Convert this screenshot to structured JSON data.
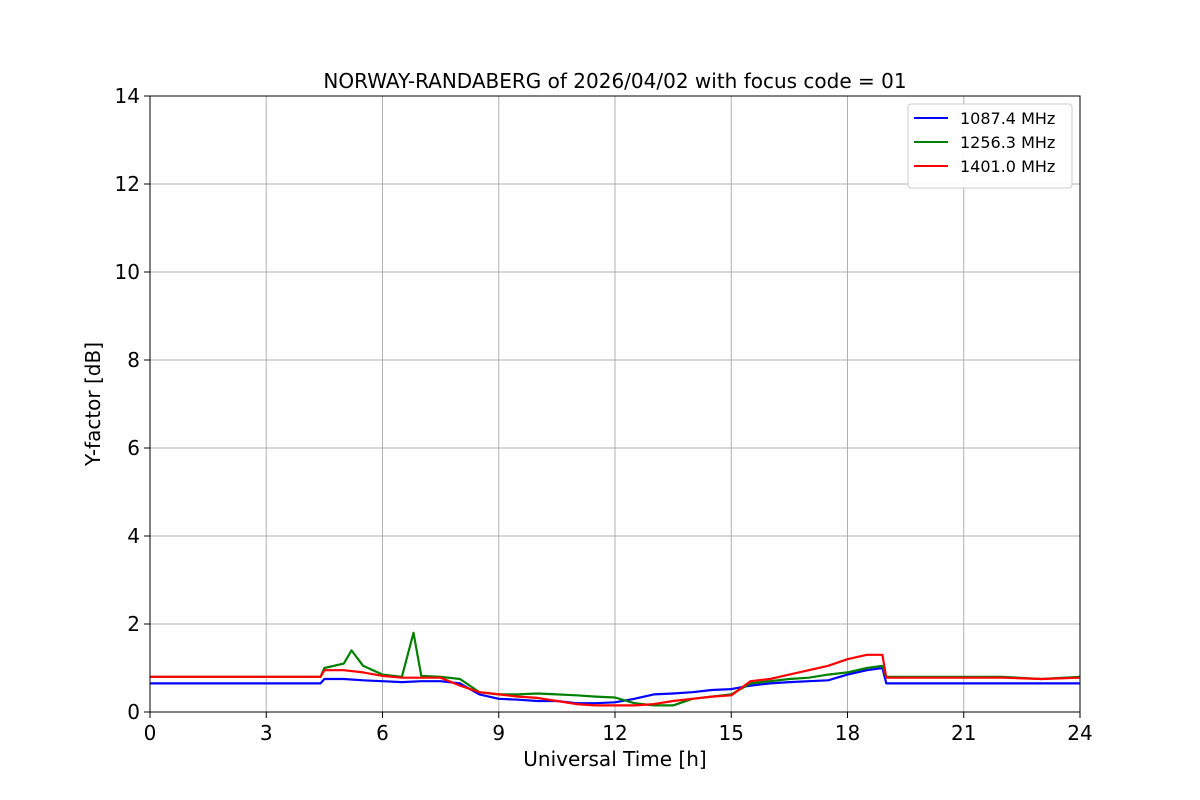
{
  "chart_data": {
    "type": "line",
    "title": "NORWAY-RANDABERG of 2026/04/02 with focus code = 01",
    "xlabel": "Universal Time [h]",
    "ylabel": "Y-factor [dB]",
    "xlim": [
      0,
      24
    ],
    "ylim": [
      0,
      14
    ],
    "xticks": [
      0,
      3,
      6,
      9,
      12,
      15,
      18,
      21,
      24
    ],
    "yticks": [
      0,
      2,
      4,
      6,
      8,
      10,
      12,
      14
    ],
    "grid": true,
    "legend_position": "top-right",
    "series": [
      {
        "name": "1087.4 MHz",
        "color": "#0000ff",
        "x": [
          0,
          1,
          2,
          3,
          4,
          4.4,
          4.5,
          5,
          5.5,
          6,
          6.5,
          7,
          7.5,
          8,
          8.5,
          9,
          9.5,
          10,
          10.5,
          11,
          11.5,
          12,
          12.5,
          13,
          13.5,
          14,
          14.5,
          15,
          15.5,
          16,
          16.5,
          17,
          17.5,
          18,
          18.5,
          18.9,
          19,
          20,
          21,
          22,
          23,
          24
        ],
        "y": [
          0.65,
          0.65,
          0.65,
          0.65,
          0.65,
          0.65,
          0.75,
          0.75,
          0.72,
          0.7,
          0.68,
          0.7,
          0.7,
          0.65,
          0.4,
          0.3,
          0.28,
          0.25,
          0.25,
          0.2,
          0.2,
          0.22,
          0.3,
          0.4,
          0.42,
          0.45,
          0.5,
          0.52,
          0.6,
          0.65,
          0.68,
          0.7,
          0.72,
          0.85,
          0.95,
          1.0,
          0.65,
          0.65,
          0.65,
          0.65,
          0.65,
          0.65
        ]
      },
      {
        "name": "1256.3 MHz",
        "color": "#008000",
        "x": [
          0,
          1,
          2,
          3,
          4,
          4.4,
          4.5,
          5,
          5.2,
          5.5,
          6,
          6.5,
          6.8,
          7,
          7.5,
          8,
          8.5,
          9,
          9.5,
          10,
          10.5,
          11,
          11.5,
          12,
          12.5,
          13,
          13.5,
          14,
          14.5,
          15,
          15.5,
          16,
          16.5,
          17,
          17.5,
          18,
          18.5,
          18.9,
          19,
          20,
          21,
          22,
          23,
          24
        ],
        "y": [
          0.8,
          0.8,
          0.8,
          0.8,
          0.8,
          0.8,
          1.0,
          1.1,
          1.4,
          1.05,
          0.85,
          0.8,
          1.8,
          0.82,
          0.8,
          0.75,
          0.45,
          0.4,
          0.4,
          0.42,
          0.4,
          0.38,
          0.35,
          0.33,
          0.2,
          0.15,
          0.15,
          0.3,
          0.35,
          0.4,
          0.65,
          0.7,
          0.75,
          0.78,
          0.85,
          0.9,
          1.0,
          1.05,
          0.8,
          0.8,
          0.8,
          0.8,
          0.75,
          0.8
        ]
      },
      {
        "name": "1401.0 MHz",
        "color": "#ff0000",
        "x": [
          0,
          1,
          2,
          3,
          4,
          4.4,
          4.5,
          5,
          5.5,
          6,
          6.5,
          7,
          7.5,
          8,
          8.5,
          9,
          9.5,
          10,
          10.5,
          11,
          11.5,
          12,
          12.5,
          13,
          13.5,
          14,
          14.5,
          15,
          15.5,
          16,
          16.5,
          17,
          17.5,
          18,
          18.5,
          18.9,
          19,
          20,
          21,
          22,
          23,
          24
        ],
        "y": [
          0.8,
          0.8,
          0.8,
          0.8,
          0.8,
          0.8,
          0.95,
          0.95,
          0.9,
          0.82,
          0.78,
          0.78,
          0.78,
          0.6,
          0.45,
          0.4,
          0.35,
          0.32,
          0.25,
          0.18,
          0.15,
          0.15,
          0.15,
          0.18,
          0.25,
          0.3,
          0.35,
          0.38,
          0.7,
          0.75,
          0.85,
          0.95,
          1.05,
          1.2,
          1.3,
          1.3,
          0.78,
          0.78,
          0.78,
          0.78,
          0.75,
          0.78
        ]
      }
    ]
  }
}
